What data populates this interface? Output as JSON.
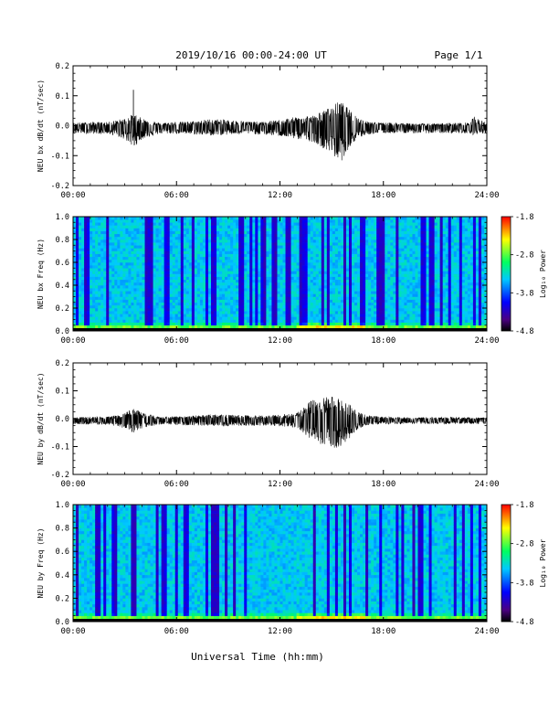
{
  "header": {
    "title": "2019/10/16  00:00-24:00 UT",
    "page": "Page 1/1"
  },
  "xaxis_label": "Universal Time (hh:mm)",
  "colorbar_label": "Log₁₀ Power",
  "chart_data": [
    {
      "type": "line",
      "ylabel": "NEU bx dB/dt (nT/sec)",
      "xlim": [
        0,
        24
      ],
      "ylim": [
        -0.2,
        0.2
      ],
      "xticks": [
        "00:00",
        "06:00",
        "12:00",
        "18:00",
        "24:00"
      ],
      "yticks": [
        "-0.2",
        "-0.1",
        "0.0",
        "0.1",
        "0.2"
      ],
      "series": [
        {
          "x": [
            0,
            1,
            2,
            3,
            3.5,
            4,
            5,
            6,
            7,
            8,
            9,
            10,
            11,
            12,
            13,
            14,
            14.5,
            15,
            15.5,
            16,
            16.5,
            17,
            18,
            19,
            20,
            21,
            22,
            23,
            23.2,
            24
          ],
          "y_upper": [
            0.015,
            0.017,
            0.017,
            0.03,
            0.045,
            0.03,
            0.015,
            0.018,
            0.02,
            0.028,
            0.025,
            0.02,
            0.018,
            0.025,
            0.035,
            0.04,
            0.055,
            0.07,
            0.09,
            0.06,
            0.035,
            0.02,
            0.015,
            0.015,
            0.012,
            0.012,
            0.014,
            0.016,
            0.035,
            0.015
          ],
          "y_lower": [
            -0.02,
            -0.022,
            -0.022,
            -0.04,
            -0.07,
            -0.04,
            -0.022,
            -0.022,
            -0.025,
            -0.028,
            -0.025,
            -0.022,
            -0.025,
            -0.03,
            -0.04,
            -0.05,
            -0.07,
            -0.09,
            -0.12,
            -0.07,
            -0.04,
            -0.025,
            -0.02,
            -0.02,
            -0.02,
            -0.02,
            -0.02,
            -0.02,
            -0.025,
            -0.02
          ],
          "spike": {
            "x": 3.5,
            "y": 0.12
          }
        }
      ]
    },
    {
      "type": "heatmap",
      "ylabel": "NEU bx Freq (Hz)",
      "xlim": [
        0,
        24
      ],
      "ylim": [
        0.0,
        1.0
      ],
      "xticks": [
        "00:00",
        "06:00",
        "12:00",
        "18:00",
        "24:00"
      ],
      "yticks": [
        "0.0",
        "0.2",
        "0.4",
        "0.6",
        "0.8",
        "1.0"
      ],
      "colorbar": {
        "min": -4.8,
        "max": -1.8,
        "ticks": [
          "-1.8",
          "-2.8",
          "-3.8",
          "-4.8"
        ]
      }
    },
    {
      "type": "line",
      "ylabel": "NEU by dB/dt (nT/sec)",
      "xlim": [
        0,
        24
      ],
      "ylim": [
        -0.2,
        0.2
      ],
      "xticks": [
        "00:00",
        "06:00",
        "12:00",
        "18:00",
        "24:00"
      ],
      "yticks": [
        "-0.2",
        "-0.1",
        "0.0",
        "0.1",
        "0.2"
      ],
      "series": [
        {
          "x": [
            0,
            1,
            2,
            3,
            3.5,
            4,
            5,
            6,
            7,
            8,
            9,
            10,
            11,
            12,
            13,
            13.8,
            14.5,
            15,
            15.5,
            16,
            16.5,
            17,
            18,
            19,
            20,
            21,
            22,
            23,
            24
          ],
          "y_upper": [
            0.01,
            0.012,
            0.012,
            0.025,
            0.045,
            0.025,
            0.012,
            0.014,
            0.016,
            0.02,
            0.02,
            0.018,
            0.016,
            0.02,
            0.025,
            0.07,
            0.08,
            0.085,
            0.08,
            0.06,
            0.03,
            0.018,
            0.012,
            0.01,
            0.01,
            0.01,
            0.01,
            0.01,
            0.01
          ],
          "y_lower": [
            -0.015,
            -0.016,
            -0.016,
            -0.03,
            -0.045,
            -0.03,
            -0.016,
            -0.018,
            -0.02,
            -0.022,
            -0.022,
            -0.02,
            -0.02,
            -0.022,
            -0.028,
            -0.07,
            -0.09,
            -0.1,
            -0.1,
            -0.07,
            -0.035,
            -0.02,
            -0.015,
            -0.014,
            -0.014,
            -0.014,
            -0.014,
            -0.014,
            -0.014
          ]
        }
      ]
    },
    {
      "type": "heatmap",
      "ylabel": "NEU by Freq (Hz)",
      "xlim": [
        0,
        24
      ],
      "ylim": [
        0.0,
        1.0
      ],
      "xticks": [
        "00:00",
        "06:00",
        "12:00",
        "18:00",
        "24:00"
      ],
      "yticks": [
        "0.0",
        "0.2",
        "0.4",
        "0.6",
        "0.8",
        "1.0"
      ],
      "colorbar": {
        "min": -4.8,
        "max": -1.8,
        "ticks": [
          "-1.8",
          "-2.8",
          "-3.8",
          "-4.8"
        ]
      }
    }
  ]
}
